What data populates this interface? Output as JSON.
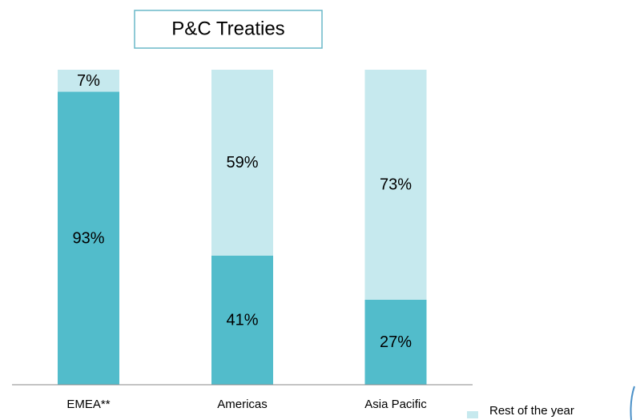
{
  "chart_data": {
    "type": "stacked_bar",
    "title": "P&C Treaties",
    "categories": [
      "EMEA**",
      "Americas",
      "Asia Pacific"
    ],
    "series": [
      {
        "color": "#52bccb",
        "values": [
          93,
          41,
          27
        ],
        "value_labels": [
          "93%",
          "41%",
          "27%"
        ]
      },
      {
        "name": "Rest of the year",
        "color": "#c6e9ee",
        "values": [
          7,
          59,
          73
        ],
        "value_labels": [
          "7%",
          "59%",
          "73%"
        ]
      }
    ],
    "ylim": [
      0,
      100
    ]
  }
}
